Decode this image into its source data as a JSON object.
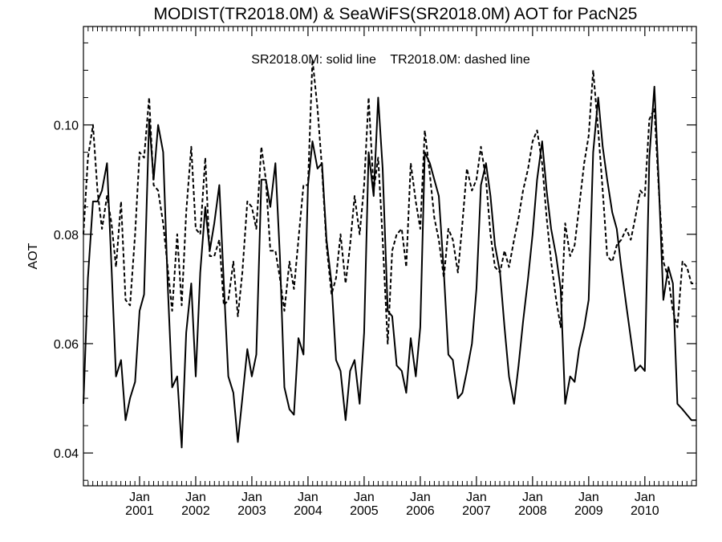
{
  "chart_data": {
    "type": "line",
    "title": "MODIST(TR2018.0M) & SeaWiFS(SR2018.0M)  AOT for PacN25",
    "annotation": "SR2018.0M: solid line    TR2018.0M: dashed line",
    "ylabel": "AOT",
    "xlabel": "",
    "xlim": [
      2000.0,
      2010.917
    ],
    "ylim": [
      0.034,
      0.118
    ],
    "yticks": [
      0.04,
      0.06,
      0.08,
      0.1
    ],
    "ytick_labels": [
      "0.04",
      "0.06",
      "0.08",
      "0.10"
    ],
    "xticks": [
      {
        "x": 2001.0,
        "month": "Jan",
        "year": "2001"
      },
      {
        "x": 2002.0,
        "month": "Jan",
        "year": "2002"
      },
      {
        "x": 2003.0,
        "month": "Jan",
        "year": "2003"
      },
      {
        "x": 2004.0,
        "month": "Jan",
        "year": "2004"
      },
      {
        "x": 2005.0,
        "month": "Jan",
        "year": "2005"
      },
      {
        "x": 2006.0,
        "month": "Jan",
        "year": "2006"
      },
      {
        "x": 2007.0,
        "month": "Jan",
        "year": "2007"
      },
      {
        "x": 2008.0,
        "month": "Jan",
        "year": "2008"
      },
      {
        "x": 2009.0,
        "month": "Jan",
        "year": "2009"
      },
      {
        "x": 2010.0,
        "month": "Jan",
        "year": "2010"
      }
    ],
    "series": [
      {
        "name": "SR2018.0M",
        "style": "solid",
        "color": "#000000",
        "points": [
          [
            2000.0,
            0.049
          ],
          [
            2000.08,
            0.072
          ],
          [
            2000.17,
            0.086
          ],
          [
            2000.25,
            0.086
          ],
          [
            2000.33,
            0.088
          ],
          [
            2000.42,
            0.093
          ],
          [
            2000.5,
            0.074
          ],
          [
            2000.58,
            0.054
          ],
          [
            2000.67,
            0.057
          ],
          [
            2000.75,
            0.046
          ],
          [
            2000.83,
            0.05
          ],
          [
            2000.92,
            0.053
          ],
          [
            2001.0,
            0.066
          ],
          [
            2001.08,
            0.069
          ],
          [
            2001.17,
            0.101
          ],
          [
            2001.25,
            0.09
          ],
          [
            2001.33,
            0.1
          ],
          [
            2001.42,
            0.095
          ],
          [
            2001.5,
            0.071
          ],
          [
            2001.58,
            0.052
          ],
          [
            2001.67,
            0.054
          ],
          [
            2001.75,
            0.041
          ],
          [
            2001.83,
            0.062
          ],
          [
            2001.92,
            0.071
          ],
          [
            2002.0,
            0.054
          ],
          [
            2002.08,
            0.073
          ],
          [
            2002.17,
            0.085
          ],
          [
            2002.25,
            0.077
          ],
          [
            2002.33,
            0.082
          ],
          [
            2002.42,
            0.089
          ],
          [
            2002.5,
            0.071
          ],
          [
            2002.58,
            0.054
          ],
          [
            2002.67,
            0.051
          ],
          [
            2002.75,
            0.042
          ],
          [
            2002.83,
            0.05
          ],
          [
            2002.92,
            0.059
          ],
          [
            2003.0,
            0.054
          ],
          [
            2003.08,
            0.058
          ],
          [
            2003.17,
            0.09
          ],
          [
            2003.25,
            0.09
          ],
          [
            2003.33,
            0.085
          ],
          [
            2003.42,
            0.093
          ],
          [
            2003.5,
            0.076
          ],
          [
            2003.58,
            0.052
          ],
          [
            2003.67,
            0.048
          ],
          [
            2003.75,
            0.047
          ],
          [
            2003.83,
            0.061
          ],
          [
            2003.92,
            0.058
          ],
          [
            2004.0,
            0.089
          ],
          [
            2004.08,
            0.097
          ],
          [
            2004.17,
            0.092
          ],
          [
            2004.25,
            0.093
          ],
          [
            2004.33,
            0.079
          ],
          [
            2004.42,
            0.071
          ],
          [
            2004.5,
            0.057
          ],
          [
            2004.58,
            0.055
          ],
          [
            2004.67,
            0.046
          ],
          [
            2004.75,
            0.055
          ],
          [
            2004.83,
            0.057
          ],
          [
            2004.92,
            0.049
          ],
          [
            2005.0,
            0.062
          ],
          [
            2005.08,
            0.095
          ],
          [
            2005.17,
            0.087
          ],
          [
            2005.25,
            0.105
          ],
          [
            2005.33,
            0.092
          ],
          [
            2005.42,
            0.066
          ],
          [
            2005.5,
            0.065
          ],
          [
            2005.58,
            0.056
          ],
          [
            2005.67,
            0.055
          ],
          [
            2005.75,
            0.051
          ],
          [
            2005.83,
            0.061
          ],
          [
            2005.92,
            0.054
          ],
          [
            2006.0,
            0.063
          ],
          [
            2006.08,
            0.095
          ],
          [
            2006.17,
            0.093
          ],
          [
            2006.25,
            0.09
          ],
          [
            2006.33,
            0.087
          ],
          [
            2006.42,
            0.073
          ],
          [
            2006.5,
            0.058
          ],
          [
            2006.58,
            0.057
          ],
          [
            2006.67,
            0.05
          ],
          [
            2006.75,
            0.051
          ],
          [
            2006.83,
            0.055
          ],
          [
            2006.92,
            0.06
          ],
          [
            2007.0,
            0.07
          ],
          [
            2007.08,
            0.089
          ],
          [
            2007.17,
            0.093
          ],
          [
            2007.25,
            0.087
          ],
          [
            2007.33,
            0.078
          ],
          [
            2007.42,
            0.073
          ],
          [
            2007.5,
            0.063
          ],
          [
            2007.58,
            0.054
          ],
          [
            2007.67,
            0.049
          ],
          [
            2007.75,
            0.056
          ],
          [
            2007.83,
            0.064
          ],
          [
            2007.92,
            0.072
          ],
          [
            2008.0,
            0.08
          ],
          [
            2008.08,
            0.09
          ],
          [
            2008.17,
            0.097
          ],
          [
            2008.25,
            0.088
          ],
          [
            2008.33,
            0.081
          ],
          [
            2008.42,
            0.076
          ],
          [
            2008.5,
            0.07
          ],
          [
            2008.58,
            0.049
          ],
          [
            2008.67,
            0.054
          ],
          [
            2008.75,
            0.053
          ],
          [
            2008.83,
            0.059
          ],
          [
            2008.92,
            0.063
          ],
          [
            2009.0,
            0.068
          ],
          [
            2009.08,
            0.095
          ],
          [
            2009.17,
            0.105
          ],
          [
            2009.25,
            0.096
          ],
          [
            2009.33,
            0.09
          ],
          [
            2009.42,
            0.084
          ],
          [
            2009.5,
            0.081
          ],
          [
            2009.58,
            0.074
          ],
          [
            2009.67,
            0.067
          ],
          [
            2009.75,
            0.061
          ],
          [
            2009.83,
            0.055
          ],
          [
            2009.92,
            0.056
          ],
          [
            2010.0,
            0.055
          ],
          [
            2010.08,
            0.094
          ],
          [
            2010.17,
            0.107
          ],
          [
            2010.25,
            0.089
          ],
          [
            2010.33,
            0.068
          ],
          [
            2010.42,
            0.074
          ],
          [
            2010.5,
            0.071
          ],
          [
            2010.58,
            0.049
          ],
          [
            2010.67,
            0.048
          ],
          [
            2010.75,
            0.047
          ],
          [
            2010.83,
            0.046
          ],
          [
            2010.917,
            0.046
          ]
        ]
      },
      {
        "name": "TR2018.0M",
        "style": "dashed",
        "color": "#000000",
        "points": [
          [
            2000.0,
            0.08
          ],
          [
            2000.08,
            0.094
          ],
          [
            2000.17,
            0.1
          ],
          [
            2000.25,
            0.088
          ],
          [
            2000.33,
            0.081
          ],
          [
            2000.42,
            0.087
          ],
          [
            2000.5,
            0.082
          ],
          [
            2000.58,
            0.074
          ],
          [
            2000.67,
            0.086
          ],
          [
            2000.75,
            0.068
          ],
          [
            2000.83,
            0.067
          ],
          [
            2000.92,
            0.08
          ],
          [
            2001.0,
            0.095
          ],
          [
            2001.08,
            0.094
          ],
          [
            2001.17,
            0.105
          ],
          [
            2001.25,
            0.089
          ],
          [
            2001.33,
            0.088
          ],
          [
            2001.42,
            0.082
          ],
          [
            2001.5,
            0.074
          ],
          [
            2001.58,
            0.066
          ],
          [
            2001.67,
            0.08
          ],
          [
            2001.75,
            0.067
          ],
          [
            2001.83,
            0.084
          ],
          [
            2001.92,
            0.096
          ],
          [
            2002.0,
            0.081
          ],
          [
            2002.08,
            0.08
          ],
          [
            2002.17,
            0.094
          ],
          [
            2002.25,
            0.076
          ],
          [
            2002.33,
            0.076
          ],
          [
            2002.42,
            0.079
          ],
          [
            2002.5,
            0.067
          ],
          [
            2002.58,
            0.068
          ],
          [
            2002.67,
            0.075
          ],
          [
            2002.75,
            0.065
          ],
          [
            2002.83,
            0.073
          ],
          [
            2002.92,
            0.086
          ],
          [
            2003.0,
            0.085
          ],
          [
            2003.08,
            0.081
          ],
          [
            2003.17,
            0.096
          ],
          [
            2003.25,
            0.09
          ],
          [
            2003.33,
            0.077
          ],
          [
            2003.42,
            0.077
          ],
          [
            2003.5,
            0.072
          ],
          [
            2003.58,
            0.066
          ],
          [
            2003.67,
            0.075
          ],
          [
            2003.75,
            0.07
          ],
          [
            2003.83,
            0.079
          ],
          [
            2003.92,
            0.089
          ],
          [
            2004.0,
            0.089
          ],
          [
            2004.08,
            0.112
          ],
          [
            2004.17,
            0.103
          ],
          [
            2004.25,
            0.092
          ],
          [
            2004.33,
            0.078
          ],
          [
            2004.42,
            0.069
          ],
          [
            2004.5,
            0.072
          ],
          [
            2004.58,
            0.08
          ],
          [
            2004.67,
            0.071
          ],
          [
            2004.75,
            0.078
          ],
          [
            2004.83,
            0.087
          ],
          [
            2004.92,
            0.08
          ],
          [
            2005.0,
            0.089
          ],
          [
            2005.08,
            0.105
          ],
          [
            2005.17,
            0.088
          ],
          [
            2005.25,
            0.094
          ],
          [
            2005.33,
            0.079
          ],
          [
            2005.42,
            0.06
          ],
          [
            2005.5,
            0.077
          ],
          [
            2005.58,
            0.08
          ],
          [
            2005.67,
            0.081
          ],
          [
            2005.75,
            0.074
          ],
          [
            2005.83,
            0.093
          ],
          [
            2005.92,
            0.086
          ],
          [
            2006.0,
            0.081
          ],
          [
            2006.08,
            0.099
          ],
          [
            2006.17,
            0.091
          ],
          [
            2006.25,
            0.083
          ],
          [
            2006.33,
            0.079
          ],
          [
            2006.42,
            0.072
          ],
          [
            2006.5,
            0.081
          ],
          [
            2006.58,
            0.079
          ],
          [
            2006.67,
            0.073
          ],
          [
            2006.75,
            0.082
          ],
          [
            2006.83,
            0.092
          ],
          [
            2006.92,
            0.088
          ],
          [
            2007.0,
            0.09
          ],
          [
            2007.08,
            0.096
          ],
          [
            2007.17,
            0.09
          ],
          [
            2007.25,
            0.08
          ],
          [
            2007.33,
            0.074
          ],
          [
            2007.42,
            0.073
          ],
          [
            2007.5,
            0.077
          ],
          [
            2007.58,
            0.074
          ],
          [
            2007.67,
            0.079
          ],
          [
            2007.75,
            0.083
          ],
          [
            2007.83,
            0.088
          ],
          [
            2007.92,
            0.092
          ],
          [
            2008.0,
            0.097
          ],
          [
            2008.08,
            0.099
          ],
          [
            2008.17,
            0.093
          ],
          [
            2008.25,
            0.083
          ],
          [
            2008.33,
            0.075
          ],
          [
            2008.42,
            0.068
          ],
          [
            2008.5,
            0.063
          ],
          [
            2008.58,
            0.082
          ],
          [
            2008.67,
            0.076
          ],
          [
            2008.75,
            0.078
          ],
          [
            2008.83,
            0.085
          ],
          [
            2008.92,
            0.093
          ],
          [
            2009.0,
            0.098
          ],
          [
            2009.08,
            0.11
          ],
          [
            2009.17,
            0.099
          ],
          [
            2009.25,
            0.088
          ],
          [
            2009.33,
            0.076
          ],
          [
            2009.42,
            0.075
          ],
          [
            2009.5,
            0.078
          ],
          [
            2009.58,
            0.079
          ],
          [
            2009.67,
            0.081
          ],
          [
            2009.75,
            0.079
          ],
          [
            2009.83,
            0.083
          ],
          [
            2009.92,
            0.088
          ],
          [
            2010.0,
            0.087
          ],
          [
            2010.08,
            0.101
          ],
          [
            2010.17,
            0.103
          ],
          [
            2010.25,
            0.088
          ],
          [
            2010.33,
            0.075
          ],
          [
            2010.42,
            0.072
          ],
          [
            2010.5,
            0.066
          ],
          [
            2010.58,
            0.063
          ],
          [
            2010.67,
            0.075
          ],
          [
            2010.75,
            0.074
          ],
          [
            2010.83,
            0.071
          ],
          [
            2010.917,
            0.071
          ]
        ]
      }
    ]
  }
}
